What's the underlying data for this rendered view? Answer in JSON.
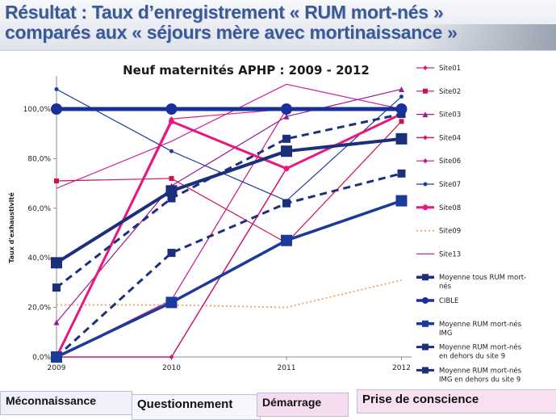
{
  "header": {
    "title_line1": "Résultat : Taux d’enregistrement « RUM mort-nés »",
    "title_line2": "comparés aux « séjours mère avec mortinaissance »"
  },
  "chart_data": {
    "type": "line",
    "title": "Neuf maternités  APHP : 2009 - 2012",
    "ylabel": "Taux d'exhaustivité",
    "xlabel": "",
    "categories": [
      "2009",
      "2010",
      "2011",
      "2012"
    ],
    "ylim": [
      0,
      1.0
    ],
    "yticks": [
      "0,0%",
      "20,0%",
      "40,0%",
      "60,0%",
      "80,0%",
      "100,0%"
    ],
    "grid": false,
    "legend_position": "right",
    "series": [
      {
        "name": "Site01",
        "values": [
          0.0,
          0.96,
          1.0,
          1.0
        ],
        "color": "#e01f7a",
        "width": 1.2,
        "dash": "",
        "marker": "diamond",
        "msize": 3
      },
      {
        "name": "Site02",
        "values": [
          0.71,
          0.72,
          0.46,
          0.95
        ],
        "color": "#d1114d",
        "width": 1.2,
        "dash": "",
        "marker": "square",
        "msize": 3
      },
      {
        "name": "Site03",
        "values": [
          0.14,
          0.69,
          0.97,
          1.08
        ],
        "color": "#9b1a8f",
        "width": 1.2,
        "dash": "",
        "marker": "triangle",
        "msize": 3.5
      },
      {
        "name": "Site04",
        "values": [
          0.0,
          0.0,
          0.76,
          0.98
        ],
        "color": "#cc1670",
        "width": 1.5,
        "dash": "",
        "marker": "diamond",
        "msize": 3
      },
      {
        "name": "Site06",
        "values": [
          0.0,
          0.23,
          1.0,
          1.0
        ],
        "color": "#c4158a",
        "width": 1.2,
        "dash": "",
        "marker": "diamond",
        "msize": 3
      },
      {
        "name": "Site07",
        "values": [
          1.08,
          0.83,
          0.63,
          1.05
        ],
        "color": "#1f3ea0",
        "width": 1.2,
        "dash": "",
        "marker": "circle",
        "msize": 2.5
      },
      {
        "name": "Site08",
        "values": [
          0.0,
          0.95,
          0.76,
          0.98
        ],
        "color": "#e8187f",
        "width": 3.0,
        "dash": "",
        "marker": "circle",
        "msize": 3.5
      },
      {
        "name": "Site09",
        "values": [
          0.21,
          0.21,
          0.2,
          0.31
        ],
        "color": "#f2a05a",
        "width": 1.8,
        "dash": "2,3",
        "marker": "none",
        "msize": 0
      },
      {
        "name": "Site13",
        "values": [
          0.68,
          0.87,
          1.1,
          1.0
        ],
        "color": "#cf1fa0",
        "width": 1.2,
        "dash": "",
        "marker": "none",
        "msize": 0
      },
      {
        "name": "Moyenne tous RUM mort-nés",
        "values": [
          0.38,
          0.67,
          0.83,
          0.88
        ],
        "color": "#1b2f7a",
        "width": 4.0,
        "dash": "",
        "marker": "square",
        "msize": 7
      },
      {
        "name": "CIBLE",
        "values": [
          1.0,
          1.0,
          1.0,
          1.0
        ],
        "color": "#17309a",
        "width": 5.0,
        "dash": "",
        "marker": "circle",
        "msize": 7
      },
      {
        "name": "Moyenne RUM mort-nés IMG",
        "values": [
          0.0,
          0.22,
          0.47,
          0.63
        ],
        "color": "#1a3a9c",
        "width": 3.5,
        "dash": "",
        "marker": "square",
        "msize": 7
      },
      {
        "name": "Moyenne RUM mort-nés en dehors du site 9",
        "values": [
          0.28,
          0.64,
          0.88,
          0.98
        ],
        "color": "#1e2f80",
        "width": 3.0,
        "dash": "9,6",
        "marker": "square",
        "msize": 5
      },
      {
        "name": "Moyenne RUM mort-nés IMG en dehors du site 9",
        "values": [
          0.0,
          0.42,
          0.62,
          0.74
        ],
        "color": "#1e2f80",
        "width": 3.0,
        "dash": "9,6",
        "marker": "square",
        "msize": 5
      }
    ]
  },
  "legend_lines": [
    [
      "Site01"
    ],
    [
      "Site02"
    ],
    [
      "Site03"
    ],
    [
      "Site04"
    ],
    [
      "Site06"
    ],
    [
      "Site07"
    ],
    [
      "Site08"
    ],
    [
      "Site09"
    ],
    [
      "Site13"
    ],
    [
      "Moyenne tous RUM mort-",
      "nés"
    ],
    [
      "CIBLE"
    ],
    [
      "Moyenne RUM mort-nés",
      "IMG"
    ],
    [
      "Moyenne RUM mort-nés",
      "en dehors du site 9"
    ],
    [
      "Moyenne RUM mort-nés",
      "IMG en dehors du site 9"
    ]
  ],
  "phases": {
    "meconnaissance": "Méconnaissance",
    "questionnement": "Questionnement",
    "demarrage": "Démarrage",
    "prise_de_conscience": "Prise de conscience"
  }
}
